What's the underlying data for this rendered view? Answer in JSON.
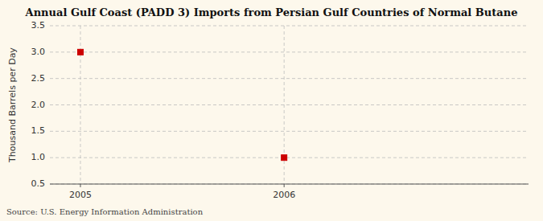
{
  "chart_data": {
    "type": "scatter",
    "title": "Annual Gulf Coast (PADD 3) Imports from Persian Gulf Countries of Normal Butane",
    "y_label": "Thousand Barrels per Day",
    "source": "Source: U.S. Energy Information Administration",
    "x": [
      2005,
      2006
    ],
    "values": [
      3.0,
      1.0
    ],
    "color": "#cc0000",
    "marker": "square",
    "xlim": [
      2004.85,
      2007.2
    ],
    "ylim": [
      0.5,
      3.5
    ],
    "xticks": [
      2005,
      2006
    ],
    "yticks": [
      0.5,
      {
        "value": 1.0,
        "label": "1.0"
      },
      1.5,
      {
        "value": 2.0,
        "label": "2.0"
      },
      2.5,
      {
        "value": 3.0,
        "label": "3.0"
      },
      3.5
    ],
    "grid": true
  }
}
